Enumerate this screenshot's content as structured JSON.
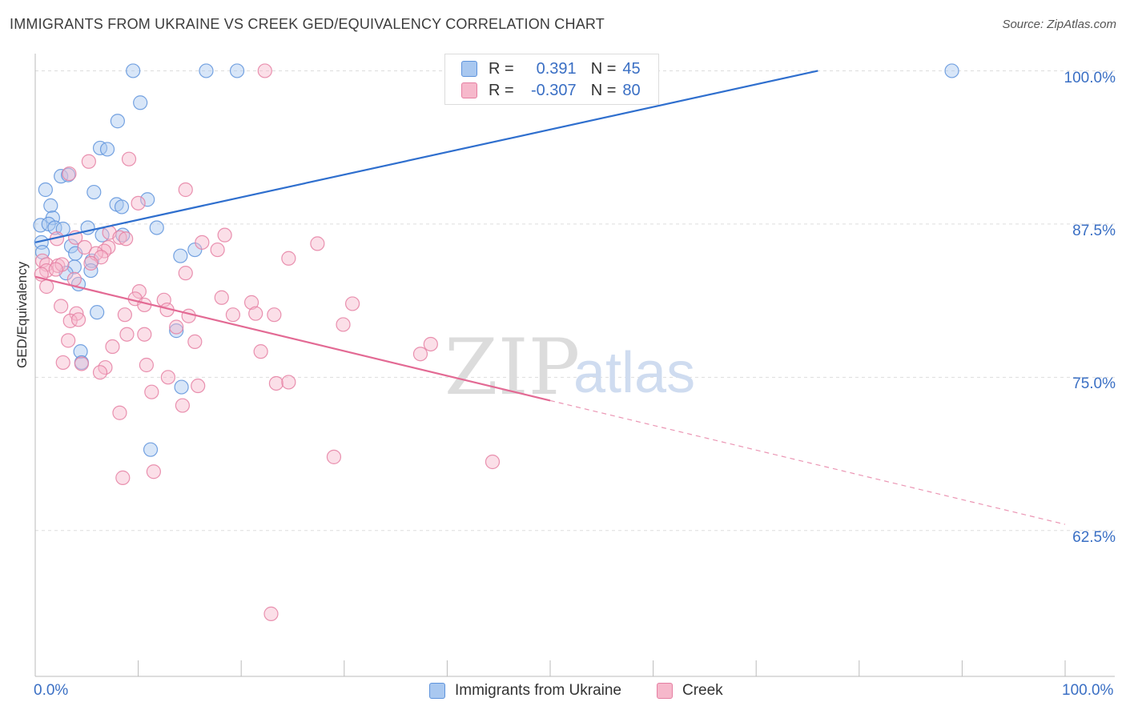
{
  "title": "IMMIGRANTS FROM UKRAINE VS CREEK GED/EQUIVALENCY CORRELATION CHART",
  "source": "Source: ZipAtlas.com",
  "watermark": {
    "zip": "ZIP",
    "atlas": "atlas"
  },
  "legend": {
    "r_label": "R =",
    "n_label": "N =",
    "ukraine": {
      "r": "0.391",
      "n": "45"
    },
    "creek": {
      "r": "-0.307",
      "n": "80"
    }
  },
  "bottom_legend": {
    "ukraine": "Immigrants from Ukraine",
    "creek": "Creek"
  },
  "colors": {
    "ukraine_fill": "#a9c8f0",
    "ukraine_stroke": "#5e93dc",
    "ukraine_line": "#2f6fce",
    "creek_fill": "#f6b8cb",
    "creek_stroke": "#e57fa2",
    "creek_line": "#e36a94",
    "accent_text": "#3a6fc4",
    "grid": "#dddddd"
  },
  "chart_data": {
    "type": "scatter",
    "title": "IMMIGRANTS FROM UKRAINE VS CREEK GED/EQUIVALENCY CORRELATION CHART",
    "xlabel": "",
    "ylabel": "GED/Equivalency",
    "xlim": [
      0,
      100
    ],
    "ylim": [
      50.6,
      101.4
    ],
    "x_tick_labels": [
      "0.0%",
      "100.0%"
    ],
    "y_ticks": [
      62.5,
      75.0,
      87.5,
      100.0
    ],
    "y_tick_labels": [
      "62.5%",
      "75.0%",
      "87.5%",
      "100.0%"
    ],
    "grid": true,
    "series": [
      {
        "name": "Immigrants from Ukraine",
        "r": 0.391,
        "n": 45,
        "trend": {
          "x0": 0,
          "y0": 86.0,
          "x1": 76.0,
          "y1": 100.0,
          "dashed_to": null
        },
        "points": [
          [
            9.5,
            100
          ],
          [
            16.6,
            100
          ],
          [
            19.6,
            100
          ],
          [
            89.0,
            100
          ],
          [
            10.2,
            97.4
          ],
          [
            8.0,
            95.9
          ],
          [
            6.3,
            93.7
          ],
          [
            7.0,
            93.6
          ],
          [
            2.5,
            91.4
          ],
          [
            3.2,
            91.5
          ],
          [
            1.0,
            90.3
          ],
          [
            5.7,
            90.1
          ],
          [
            1.5,
            89.0
          ],
          [
            7.9,
            89.1
          ],
          [
            8.4,
            88.9
          ],
          [
            10.9,
            89.5
          ],
          [
            1.7,
            88.0
          ],
          [
            0.5,
            87.4
          ],
          [
            1.3,
            87.5
          ],
          [
            1.9,
            87.2
          ],
          [
            2.7,
            87.1
          ],
          [
            5.1,
            87.2
          ],
          [
            11.8,
            87.2
          ],
          [
            0.6,
            86.0
          ],
          [
            6.5,
            86.6
          ],
          [
            8.5,
            86.6
          ],
          [
            3.5,
            85.7
          ],
          [
            15.5,
            85.4
          ],
          [
            0.7,
            85.2
          ],
          [
            3.9,
            85.1
          ],
          [
            14.1,
            84.9
          ],
          [
            5.5,
            84.5
          ],
          [
            3.8,
            84.0
          ],
          [
            3.0,
            83.5
          ],
          [
            5.4,
            83.7
          ],
          [
            4.2,
            82.6
          ],
          [
            6.0,
            80.3
          ],
          [
            13.7,
            78.8
          ],
          [
            4.4,
            77.1
          ],
          [
            4.5,
            76.2
          ],
          [
            14.2,
            74.2
          ],
          [
            11.2,
            69.1
          ]
        ]
      },
      {
        "name": "Creek",
        "r": -0.307,
        "n": 80,
        "trend": {
          "x0": 0,
          "y0": 83.2,
          "x1": 50.0,
          "y1": 73.1,
          "dashed_to": {
            "x": 100.0,
            "y": 63.0
          }
        },
        "points": [
          [
            22.3,
            100
          ],
          [
            3.3,
            91.6
          ],
          [
            5.2,
            92.6
          ],
          [
            9.1,
            92.8
          ],
          [
            14.6,
            90.3
          ],
          [
            10.0,
            89.2
          ],
          [
            18.4,
            86.6
          ],
          [
            16.2,
            86.0
          ],
          [
            27.4,
            85.9
          ],
          [
            2.1,
            86.3
          ],
          [
            3.9,
            86.4
          ],
          [
            4.8,
            85.6
          ],
          [
            7.2,
            86.8
          ],
          [
            8.2,
            86.4
          ],
          [
            8.8,
            86.3
          ],
          [
            7.1,
            85.6
          ],
          [
            17.7,
            85.4
          ],
          [
            6.7,
            85.3
          ],
          [
            5.9,
            85.1
          ],
          [
            6.4,
            84.8
          ],
          [
            24.6,
            84.7
          ],
          [
            0.7,
            84.5
          ],
          [
            1.1,
            84.2
          ],
          [
            2.2,
            84.1
          ],
          [
            2.6,
            84.2
          ],
          [
            5.4,
            84.3
          ],
          [
            14.6,
            83.5
          ],
          [
            1.1,
            83.7
          ],
          [
            2.0,
            83.8
          ],
          [
            0.6,
            83.4
          ],
          [
            3.8,
            83.0
          ],
          [
            1.1,
            82.4
          ],
          [
            10.1,
            82.0
          ],
          [
            9.7,
            81.4
          ],
          [
            12.5,
            81.3
          ],
          [
            18.1,
            81.5
          ],
          [
            21.0,
            81.1
          ],
          [
            30.8,
            81.0
          ],
          [
            2.5,
            80.8
          ],
          [
            10.6,
            80.9
          ],
          [
            12.8,
            80.5
          ],
          [
            4.0,
            80.2
          ],
          [
            8.7,
            80.1
          ],
          [
            14.9,
            80.0
          ],
          [
            19.2,
            80.1
          ],
          [
            21.4,
            80.2
          ],
          [
            23.2,
            80.1
          ],
          [
            3.4,
            79.6
          ],
          [
            4.2,
            79.7
          ],
          [
            13.7,
            79.1
          ],
          [
            29.9,
            79.3
          ],
          [
            8.9,
            78.5
          ],
          [
            10.6,
            78.5
          ],
          [
            3.2,
            78.0
          ],
          [
            15.5,
            77.9
          ],
          [
            7.5,
            77.5
          ],
          [
            38.4,
            77.7
          ],
          [
            21.9,
            77.1
          ],
          [
            37.4,
            76.9
          ],
          [
            2.7,
            76.2
          ],
          [
            4.5,
            76.1
          ],
          [
            10.8,
            76.0
          ],
          [
            6.8,
            75.8
          ],
          [
            6.3,
            75.4
          ],
          [
            12.9,
            75.0
          ],
          [
            23.4,
            74.5
          ],
          [
            24.6,
            74.6
          ],
          [
            15.8,
            74.3
          ],
          [
            11.3,
            73.8
          ],
          [
            14.3,
            72.7
          ],
          [
            8.2,
            72.1
          ],
          [
            29.0,
            68.5
          ],
          [
            44.4,
            68.1
          ],
          [
            11.5,
            67.3
          ],
          [
            8.5,
            66.8
          ],
          [
            22.9,
            55.7
          ]
        ]
      }
    ]
  }
}
